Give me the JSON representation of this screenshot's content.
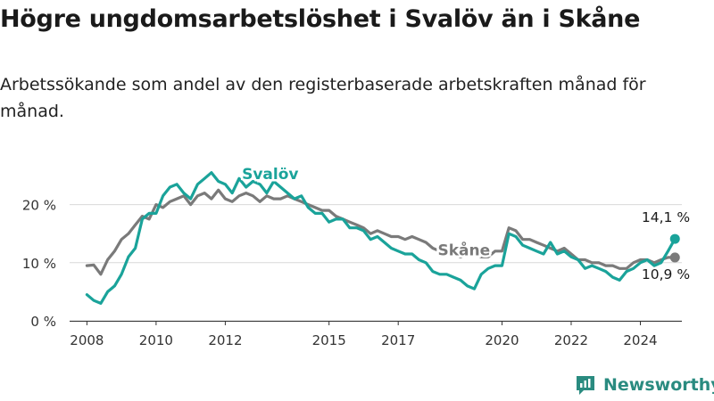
{
  "title": "Högre ungdomsarbetslöshet i Svalöv än i Skåne",
  "subtitle": "Arbetssökande som andel av den registerbaserade arbetskraften månad för månad.",
  "brand": "Newsworthy",
  "colors": {
    "svalov": "#1aa39a",
    "skane": "#7a7a7a",
    "grid": "#d9d9d9",
    "axis": "#333333",
    "brand": "#2a8b80"
  },
  "chart_data": {
    "type": "line",
    "title": "Högre ungdomsarbetslöshet i Svalöv än i Skåne",
    "xlabel": "",
    "ylabel": "",
    "xlim": [
      2007.5,
      2025.2
    ],
    "ylim": [
      0,
      20
    ],
    "y_ticks": [
      0,
      10,
      20
    ],
    "y_tick_labels": [
      "0 %",
      "10 %",
      "20 %"
    ],
    "x_ticks": [
      2008,
      2010,
      2012,
      2015,
      2017,
      2020,
      2022,
      2024
    ],
    "x_tick_labels": [
      "2008",
      "2010",
      "2012",
      "2015",
      "2017",
      "2020",
      "2022",
      "2024"
    ],
    "grid": true,
    "series": [
      {
        "name": "Skåne",
        "label": "Skåne",
        "end_label": "10,9 %",
        "x": [
          2008.0,
          2008.2,
          2008.4,
          2008.6,
          2008.8,
          2009.0,
          2009.2,
          2009.4,
          2009.6,
          2009.8,
          2010.0,
          2010.2,
          2010.4,
          2010.6,
          2010.8,
          2011.0,
          2011.2,
          2011.4,
          2011.6,
          2011.8,
          2012.0,
          2012.2,
          2012.4,
          2012.6,
          2012.8,
          2013.0,
          2013.2,
          2013.4,
          2013.6,
          2013.8,
          2014.0,
          2014.2,
          2014.4,
          2014.6,
          2014.8,
          2015.0,
          2015.2,
          2015.4,
          2015.6,
          2015.8,
          2016.0,
          2016.2,
          2016.4,
          2016.6,
          2016.8,
          2017.0,
          2017.2,
          2017.4,
          2017.6,
          2017.8,
          2018.0,
          2018.2,
          2018.4,
          2018.6,
          2018.8,
          2019.0,
          2019.2,
          2019.4,
          2019.6,
          2019.8,
          2020.0,
          2020.2,
          2020.4,
          2020.6,
          2020.8,
          2021.0,
          2021.2,
          2021.4,
          2021.6,
          2021.8,
          2022.0,
          2022.2,
          2022.4,
          2022.6,
          2022.8,
          2023.0,
          2023.2,
          2023.4,
          2023.6,
          2023.8,
          2024.0,
          2024.2,
          2024.4,
          2024.6,
          2024.8,
          2025.0
        ],
        "values": [
          9.5,
          9.6,
          8.0,
          10.5,
          12.0,
          14.0,
          15.0,
          16.5,
          18.0,
          17.5,
          20.0,
          19.5,
          20.5,
          21.0,
          21.5,
          20.0,
          21.5,
          22.0,
          21.0,
          22.5,
          21.0,
          20.5,
          21.5,
          22.0,
          21.5,
          20.5,
          21.5,
          21.0,
          21.0,
          21.5,
          21.0,
          20.5,
          20.0,
          19.5,
          19.0,
          19.0,
          18.0,
          17.5,
          17.0,
          16.5,
          16.0,
          15.0,
          15.5,
          15.0,
          14.5,
          14.5,
          14.0,
          14.5,
          14.0,
          13.5,
          12.5,
          12.0,
          11.5,
          11.5,
          11.0,
          11.5,
          11.5,
          11.0,
          11.0,
          12.0,
          12.0,
          16.0,
          15.5,
          14.0,
          14.0,
          13.5,
          13.0,
          12.5,
          12.0,
          12.5,
          11.5,
          10.5,
          10.5,
          10.0,
          10.0,
          9.5,
          9.5,
          9.0,
          9.0,
          10.0,
          10.5,
          10.5,
          10.0,
          10.5,
          10.9,
          10.9
        ]
      },
      {
        "name": "Svalöv",
        "label": "Svalöv",
        "end_label": "14,1 %",
        "x": [
          2008.0,
          2008.2,
          2008.4,
          2008.6,
          2008.8,
          2009.0,
          2009.2,
          2009.4,
          2009.6,
          2009.8,
          2010.0,
          2010.2,
          2010.4,
          2010.6,
          2010.8,
          2011.0,
          2011.2,
          2011.4,
          2011.6,
          2011.8,
          2012.0,
          2012.2,
          2012.4,
          2012.6,
          2012.8,
          2013.0,
          2013.2,
          2013.4,
          2013.6,
          2013.8,
          2014.0,
          2014.2,
          2014.4,
          2014.6,
          2014.8,
          2015.0,
          2015.2,
          2015.4,
          2015.6,
          2015.8,
          2016.0,
          2016.2,
          2016.4,
          2016.6,
          2016.8,
          2017.0,
          2017.2,
          2017.4,
          2017.6,
          2017.8,
          2018.0,
          2018.2,
          2018.4,
          2018.6,
          2018.8,
          2019.0,
          2019.2,
          2019.4,
          2019.6,
          2019.8,
          2020.0,
          2020.2,
          2020.4,
          2020.6,
          2020.8,
          2021.0,
          2021.2,
          2021.4,
          2021.6,
          2021.8,
          2022.0,
          2022.2,
          2022.4,
          2022.6,
          2022.8,
          2023.0,
          2023.2,
          2023.4,
          2023.6,
          2023.8,
          2024.0,
          2024.2,
          2024.4,
          2024.6,
          2024.8,
          2025.0
        ],
        "values": [
          4.5,
          3.5,
          3.0,
          5.0,
          6.0,
          8.0,
          11.0,
          12.5,
          17.5,
          18.5,
          18.5,
          21.5,
          23.0,
          23.5,
          22.0,
          21.0,
          23.5,
          24.5,
          25.5,
          24.0,
          23.5,
          22.0,
          24.5,
          23.0,
          24.0,
          23.5,
          22.0,
          24.0,
          23.0,
          22.0,
          21.0,
          21.5,
          19.5,
          18.5,
          18.5,
          17.0,
          17.5,
          17.5,
          16.0,
          16.0,
          15.5,
          14.0,
          14.5,
          13.5,
          12.5,
          12.0,
          11.5,
          11.5,
          10.5,
          10.0,
          8.5,
          8.0,
          8.0,
          7.5,
          7.0,
          6.0,
          5.5,
          8.0,
          9.0,
          9.5,
          9.5,
          15.0,
          14.5,
          13.0,
          12.5,
          12.0,
          11.5,
          13.5,
          11.5,
          12.0,
          11.0,
          10.5,
          9.0,
          9.5,
          9.0,
          8.5,
          7.5,
          7.0,
          8.5,
          9.0,
          10.0,
          10.5,
          9.5,
          10.0,
          12.0,
          14.1
        ]
      }
    ]
  }
}
